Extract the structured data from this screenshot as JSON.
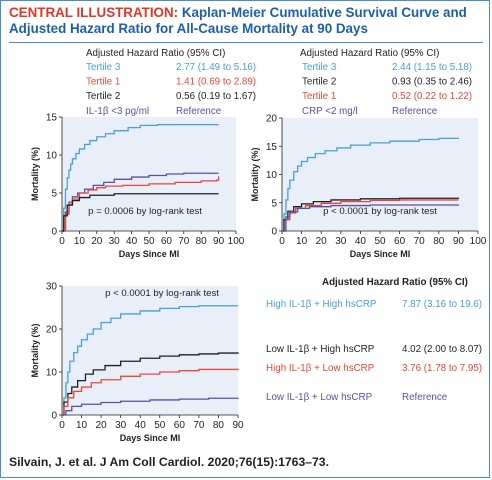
{
  "header": {
    "lead": "CENTRAL ILLUSTRATION:",
    "title": "Kaplan-Meier Cumulative Survival Curve and Adjusted Hazard Ratio for All-Cause Mortality at 90 Days"
  },
  "citation": "Silvain, J. et al. J Am Coll Cardiol. 2020;76(15):1763–73.",
  "colors": {
    "blue": "#4a9fd5",
    "red": "#e8473a",
    "black": "#231f20",
    "purple": "#5a4fa3",
    "panel_bg": "#e9eff8",
    "title_blue": "#1f5ea8",
    "title_red": "#e0362a"
  },
  "chart_data": [
    {
      "type": "line",
      "id": "il1b",
      "xlabel": "Days Since MI",
      "ylabel": "Mortality (%)",
      "xlim": [
        0,
        100
      ],
      "ylim": [
        0,
        15
      ],
      "xticks": [
        0,
        10,
        20,
        30,
        40,
        50,
        60,
        70,
        80,
        90,
        100
      ],
      "yticks": [
        0,
        5,
        10,
        15
      ],
      "annotation": "p = 0.0006 by log-rank test",
      "table_title": "Adjusted Hazard Ratio (95% CI)",
      "table": [
        {
          "label": "Tertile 3",
          "hr": "2.77 (1.49 to 5.16)",
          "color": "#4a9fd5"
        },
        {
          "label": "Tertile 1",
          "hr": "1.41 (0.69 to 2.89)",
          "color": "#e8473a"
        },
        {
          "label": "Tertile 2",
          "hr": "0.56 (0.19 to 1.67)",
          "color": "#231f20"
        },
        {
          "label": "IL-1β <3 pg/ml",
          "hr": "Reference",
          "color": "#5a4fa3"
        }
      ],
      "series": [
        {
          "color": "#4a9fd5",
          "points": [
            [
              0,
              0
            ],
            [
              1,
              3
            ],
            [
              2,
              5.5
            ],
            [
              3,
              7
            ],
            [
              4,
              8
            ],
            [
              5,
              8.8
            ],
            [
              6,
              9.5
            ],
            [
              8,
              10.2
            ],
            [
              10,
              10.8
            ],
            [
              13,
              11.4
            ],
            [
              16,
              11.9
            ],
            [
              20,
              12.4
            ],
            [
              25,
              12.8
            ],
            [
              30,
              13.2
            ],
            [
              38,
              13.6
            ],
            [
              45,
              13.9
            ],
            [
              55,
              14.0
            ],
            [
              90,
              14.0
            ]
          ]
        },
        {
          "color": "#5a4fa3",
          "points": [
            [
              0,
              0
            ],
            [
              2,
              2.5
            ],
            [
              4,
              3.8
            ],
            [
              6,
              4.5
            ],
            [
              9,
              5.0
            ],
            [
              13,
              5.5
            ],
            [
              18,
              6.0
            ],
            [
              24,
              6.4
            ],
            [
              30,
              6.8
            ],
            [
              40,
              7.1
            ],
            [
              50,
              7.3
            ],
            [
              60,
              7.5
            ],
            [
              70,
              7.6
            ],
            [
              90,
              7.6
            ]
          ]
        },
        {
          "color": "#e8473a",
          "points": [
            [
              0,
              0
            ],
            [
              2,
              2.2
            ],
            [
              4,
              3.5
            ],
            [
              6,
              4.2
            ],
            [
              10,
              5.0
            ],
            [
              15,
              5.4
            ],
            [
              20,
              5.7
            ],
            [
              25,
              5.9
            ],
            [
              35,
              6.0
            ],
            [
              50,
              6.2
            ],
            [
              65,
              6.4
            ],
            [
              80,
              6.6
            ],
            [
              89,
              6.7
            ],
            [
              90,
              7.2
            ]
          ]
        },
        {
          "color": "#231f20",
          "points": [
            [
              0,
              0
            ],
            [
              1,
              2
            ],
            [
              3,
              3.4
            ],
            [
              6,
              4.0
            ],
            [
              10,
              4.4
            ],
            [
              16,
              4.7
            ],
            [
              30,
              4.9
            ],
            [
              90,
              4.9
            ]
          ]
        }
      ]
    },
    {
      "type": "line",
      "id": "crp",
      "xlabel": "Days Since MI",
      "ylabel": "Mortality (%)",
      "xlim": [
        0,
        100
      ],
      "ylim": [
        0,
        20
      ],
      "xticks": [
        0,
        10,
        20,
        30,
        40,
        50,
        60,
        70,
        80,
        90,
        100
      ],
      "yticks": [
        0,
        5,
        10,
        15,
        20
      ],
      "annotation": "p < 0.0001 by log-rank test",
      "table_title": "Adjusted Hazard Ratio (95% CI)",
      "table": [
        {
          "label": "Tertile 3",
          "hr": "2.44 (1.15 to 5.18)",
          "color": "#4a9fd5"
        },
        {
          "label": "Tertile 2",
          "hr": "0.93 (0.35 to 2.46)",
          "color": "#231f20"
        },
        {
          "label": "Tertile 1",
          "hr": "0.52 (0.22 to 1.22)",
          "color": "#e8473a"
        },
        {
          "label": "CRP <2 mg/l",
          "hr": "Reference",
          "color": "#5a4fa3"
        }
      ],
      "series": [
        {
          "color": "#4a9fd5",
          "points": [
            [
              0,
              0
            ],
            [
              1,
              3
            ],
            [
              2,
              5.5
            ],
            [
              3,
              7.5
            ],
            [
              4,
              9
            ],
            [
              6,
              10.5
            ],
            [
              8,
              11.5
            ],
            [
              10,
              12.3
            ],
            [
              13,
              13.0
            ],
            [
              17,
              13.7
            ],
            [
              22,
              14.2
            ],
            [
              28,
              14.7
            ],
            [
              35,
              15.2
            ],
            [
              45,
              15.6
            ],
            [
              55,
              15.9
            ],
            [
              70,
              16.2
            ],
            [
              80,
              16.4
            ],
            [
              90,
              16.5
            ]
          ]
        },
        {
          "color": "#231f20",
          "points": [
            [
              0,
              0
            ],
            [
              1,
              2
            ],
            [
              3,
              3.5
            ],
            [
              6,
              4.3
            ],
            [
              10,
              4.8
            ],
            [
              16,
              5.2
            ],
            [
              25,
              5.5
            ],
            [
              40,
              5.7
            ],
            [
              60,
              5.8
            ],
            [
              90,
              5.9
            ]
          ]
        },
        {
          "color": "#e8473a",
          "points": [
            [
              0,
              0
            ],
            [
              2,
              2
            ],
            [
              4,
              3.2
            ],
            [
              7,
              4.0
            ],
            [
              12,
              4.5
            ],
            [
              20,
              4.9
            ],
            [
              30,
              5.2
            ],
            [
              45,
              5.4
            ],
            [
              60,
              5.5
            ],
            [
              90,
              5.5
            ]
          ]
        },
        {
          "color": "#5a4fa3",
          "points": [
            [
              0,
              0
            ],
            [
              2,
              2.5
            ],
            [
              4,
              3.4
            ],
            [
              8,
              4.0
            ],
            [
              14,
              4.3
            ],
            [
              25,
              4.5
            ],
            [
              45,
              4.6
            ],
            [
              90,
              4.7
            ]
          ]
        }
      ]
    },
    {
      "type": "line",
      "id": "combined",
      "xlabel": "Days Since MI",
      "ylabel": "Mortality (%)",
      "xlim": [
        0,
        90
      ],
      "ylim": [
        0,
        30
      ],
      "xticks": [
        0,
        10,
        20,
        30,
        40,
        50,
        60,
        70,
        80,
        90
      ],
      "yticks": [
        0,
        10,
        20,
        30
      ],
      "annotation": "p < 0.0001 by log-rank test",
      "table_title": "Adjusted Hazard Ratio (95% CI)",
      "table": [
        {
          "label": "High IL-1β + High hsCRP",
          "hr": "7.87 (3.16 to 19.6)",
          "color": "#4a9fd5"
        },
        {
          "label": "Low IL-1β + High hsCRP",
          "hr": "4.02 (2.00 to 8.07)",
          "color": "#231f20"
        },
        {
          "label": "High IL-1β + Low hsCRP",
          "hr": "3.76 (1.78 to 7.95)",
          "color": "#e8473a"
        },
        {
          "label": "Low IL-1β + Low hsCRP",
          "hr": "Reference",
          "color": "#5a4fa3"
        }
      ],
      "series": [
        {
          "color": "#4a9fd5",
          "points": [
            [
              0,
              0
            ],
            [
              1,
              4
            ],
            [
              2,
              7.5
            ],
            [
              3,
              10
            ],
            [
              4,
              12.5
            ],
            [
              6,
              14.5
            ],
            [
              8,
              16
            ],
            [
              10,
              17.5
            ],
            [
              13,
              18.8
            ],
            [
              16,
              20
            ],
            [
              20,
              21.5
            ],
            [
              25,
              22.5
            ],
            [
              30,
              23.5
            ],
            [
              40,
              24.2
            ],
            [
              50,
              24.8
            ],
            [
              60,
              25.2
            ],
            [
              70,
              25.4
            ],
            [
              90,
              25.4
            ]
          ]
        },
        {
          "color": "#231f20",
          "points": [
            [
              0,
              0
            ],
            [
              1,
              3
            ],
            [
              3,
              5
            ],
            [
              5,
              6.5
            ],
            [
              8,
              8
            ],
            [
              12,
              9.5
            ],
            [
              16,
              10.5
            ],
            [
              22,
              11.5
            ],
            [
              30,
              12.5
            ],
            [
              40,
              13.2
            ],
            [
              50,
              13.7
            ],
            [
              60,
              14.0
            ],
            [
              70,
              14.2
            ],
            [
              80,
              14.4
            ],
            [
              90,
              14.6
            ]
          ]
        },
        {
          "color": "#e8473a",
          "points": [
            [
              0,
              0
            ],
            [
              1,
              2
            ],
            [
              3,
              4
            ],
            [
              6,
              5.5
            ],
            [
              10,
              6.5
            ],
            [
              15,
              7.5
            ],
            [
              20,
              8.2
            ],
            [
              30,
              9.0
            ],
            [
              40,
              9.5
            ],
            [
              50,
              10.0
            ],
            [
              60,
              10.3
            ],
            [
              70,
              10.6
            ],
            [
              90,
              10.7
            ]
          ]
        },
        {
          "color": "#5a4fa3",
          "points": [
            [
              0,
              0
            ],
            [
              2,
              1
            ],
            [
              5,
              2
            ],
            [
              10,
              2.5
            ],
            [
              20,
              2.9
            ],
            [
              30,
              3.2
            ],
            [
              45,
              3.5
            ],
            [
              60,
              3.7
            ],
            [
              75,
              3.9
            ],
            [
              90,
              4.0
            ]
          ]
        }
      ]
    }
  ]
}
